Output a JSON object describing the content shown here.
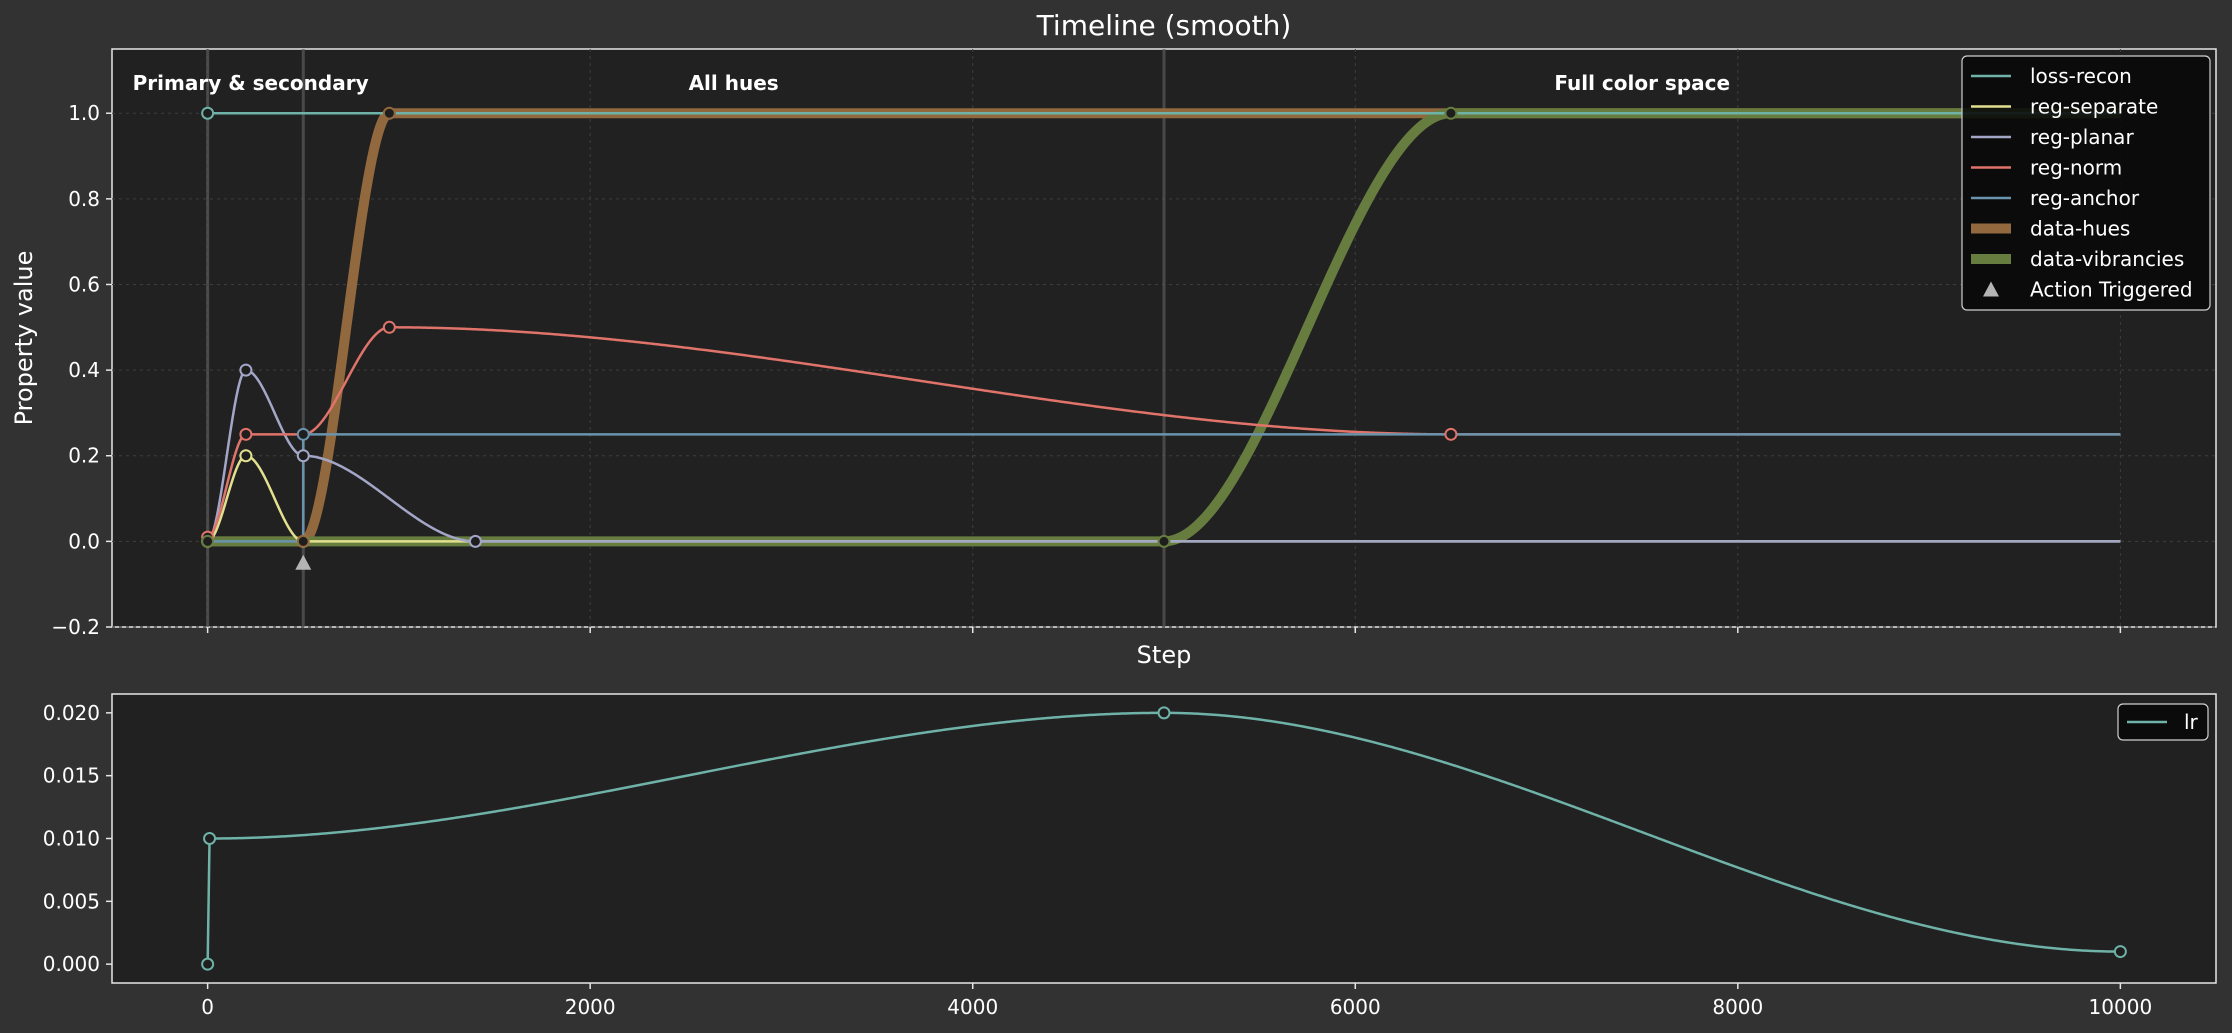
{
  "chart_data": [
    {
      "type": "line",
      "title": "Timeline (smooth)",
      "xlabel": "Step",
      "ylabel": "Property value",
      "xlim": [
        -500,
        10500
      ],
      "ylim": [
        -0.2,
        1.15
      ],
      "x_ticks": [
        0,
        2000,
        4000,
        6000,
        8000,
        10000
      ],
      "y_ticks": [
        -0.2,
        0.0,
        0.2,
        0.4,
        0.6,
        0.8,
        1.0
      ],
      "y_tick_labels": [
        "−0.2",
        "0.0",
        "0.2",
        "0.4",
        "0.6",
        "0.8",
        "1.0"
      ],
      "grid": true,
      "legend_position": "top-right",
      "phase_boundaries": [
        0,
        500,
        5000
      ],
      "phases": [
        {
          "label": "Primary & secondary",
          "x": 0
        },
        {
          "label": "All hues",
          "x": 2750
        },
        {
          "label": "Full color space",
          "x": 7500
        }
      ],
      "series": [
        {
          "name": "loss-recon",
          "color": "#6fb2a8",
          "width": "thin",
          "keyframes": [
            [
              0,
              1.0
            ],
            [
              10000,
              1.0
            ]
          ]
        },
        {
          "name": "reg-separate",
          "color": "#e1e08f",
          "width": "thin",
          "keyframes": [
            [
              0,
              0.0
            ],
            [
              200,
              0.2
            ],
            [
              500,
              0.0
            ],
            [
              10000,
              0.0
            ]
          ]
        },
        {
          "name": "reg-planar",
          "color": "#a3a6c7",
          "width": "thin",
          "keyframes": [
            [
              0,
              0.0
            ],
            [
              200,
              0.4
            ],
            [
              500,
              0.2
            ],
            [
              1400,
              0.0
            ],
            [
              10000,
              0.0
            ]
          ]
        },
        {
          "name": "reg-norm",
          "color": "#e0736a",
          "width": "thin",
          "keyframes": [
            [
              0,
              0.01
            ],
            [
              200,
              0.25
            ],
            [
              500,
              0.25
            ],
            [
              950,
              0.5
            ],
            [
              6500,
              0.25
            ],
            [
              10000,
              0.25
            ]
          ]
        },
        {
          "name": "reg-anchor",
          "color": "#6a93ad",
          "width": "thin",
          "keyframes": [
            [
              0,
              0.0
            ],
            [
              500,
              0.0
            ],
            [
              500,
              0.25
            ],
            [
              10000,
              0.25
            ]
          ]
        },
        {
          "name": "data-hues",
          "color": "#92693e",
          "width": "thick",
          "keyframes": [
            [
              0,
              0.0
            ],
            [
              500,
              0.0
            ],
            [
              950,
              1.0
            ],
            [
              10000,
              1.0
            ]
          ]
        },
        {
          "name": "data-vibrancies",
          "color": "#667d3f",
          "width": "thick",
          "keyframes": [
            [
              0,
              0.0
            ],
            [
              5000,
              0.0
            ],
            [
              6500,
              1.0
            ],
            [
              10000,
              1.0
            ]
          ]
        }
      ],
      "markers": [
        {
          "series": "loss-recon",
          "points": [
            [
              0,
              1.0
            ]
          ]
        },
        {
          "series": "reg-separate",
          "points": [
            [
              0,
              0.0
            ],
            [
              200,
              0.2
            ],
            [
              500,
              0.0
            ]
          ]
        },
        {
          "series": "reg-planar",
          "points": [
            [
              200,
              0.4
            ],
            [
              500,
              0.2
            ],
            [
              1400,
              0.0
            ]
          ]
        },
        {
          "series": "reg-norm",
          "points": [
            [
              0,
              0.01
            ],
            [
              200,
              0.25
            ],
            [
              950,
              0.5
            ],
            [
              6500,
              0.25
            ]
          ]
        },
        {
          "series": "reg-anchor",
          "points": [
            [
              500,
              0.25
            ]
          ]
        },
        {
          "series": "data-hues",
          "points": [
            [
              500,
              0.0
            ],
            [
              950,
              1.0
            ]
          ]
        },
        {
          "series": "data-vibrancies",
          "points": [
            [
              0,
              0.0
            ],
            [
              5000,
              0.0
            ],
            [
              6500,
              1.0
            ]
          ]
        }
      ],
      "actions": {
        "name": "Action Triggered",
        "color": "#b4b4b4",
        "x": [
          500
        ]
      }
    },
    {
      "type": "line",
      "xlim": [
        -500,
        10500
      ],
      "ylim": [
        -0.0015,
        0.0215
      ],
      "x_ticks": [
        0,
        2000,
        4000,
        6000,
        8000,
        10000
      ],
      "y_ticks": [
        0.0,
        0.005,
        0.01,
        0.015,
        0.02
      ],
      "y_tick_labels": [
        "0.000",
        "0.005",
        "0.010",
        "0.015",
        "0.020"
      ],
      "grid": false,
      "legend_position": "top-right",
      "series": [
        {
          "name": "lr",
          "color": "#6fb2a8",
          "keyframes": [
            [
              0,
              0.0
            ],
            [
              10,
              0.01
            ],
            [
              5000,
              0.02
            ],
            [
              10000,
              0.001
            ]
          ]
        }
      ]
    }
  ]
}
